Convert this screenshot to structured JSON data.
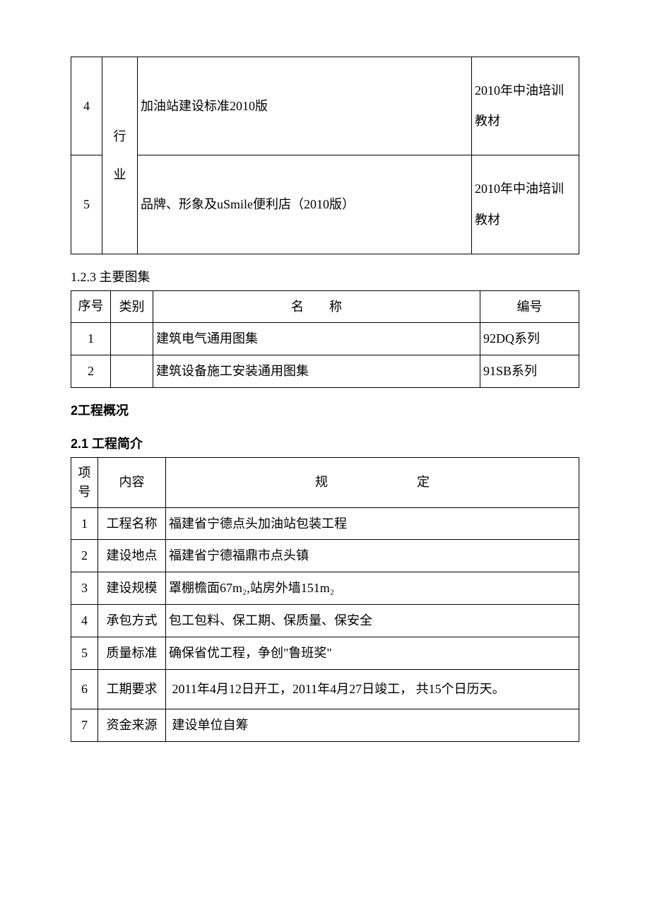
{
  "table1": {
    "rows": [
      {
        "num": "4",
        "cat_top": "行",
        "desc": "加油站建设标准2010版",
        "note": "2010年中油培训教材"
      },
      {
        "num": "5",
        "cat_bottom": "业",
        "desc": "品牌、形象及uSmile便利店（2010版）",
        "note": "2010年中油培训教材"
      }
    ]
  },
  "sec123": "1.2.3 主要图集",
  "table2": {
    "headers": {
      "c1": "序号",
      "c2": "类别",
      "c3": "名　　称",
      "c4": "编号"
    },
    "rows": [
      {
        "num": "1",
        "cat": "",
        "desc": "建筑电气通用图集",
        "code": "92DQ系列"
      },
      {
        "num": "2",
        "cat": "",
        "desc": "建筑设备施工安装通用图集",
        "code": "91SB系列"
      }
    ]
  },
  "sec2": "2工程概况",
  "sec21": "2.1 工程简介",
  "table3": {
    "headers": {
      "c1": "项号",
      "c2": "内容",
      "c3": "规　　　　　　　定"
    },
    "rows": [
      {
        "num": "1",
        "label": "工程名称",
        "val": "福建省宁德点头加油站包装工程"
      },
      {
        "num": "2",
        "label": "建设地点",
        "val": "福建省宁德福鼎市点头镇"
      },
      {
        "num": "3",
        "label": "建设规模",
        "val": "罩棚檐面67m₂,站房外墙151m₂"
      },
      {
        "num": "4",
        "label": "承包方式",
        "val": "包工包料、保工期、保质量、保安全"
      },
      {
        "num": "5",
        "label": "质量标准",
        "val": "确保省优工程，争创\"鲁班奖\""
      },
      {
        "num": "6",
        "label": "工期要求",
        "val": " 2011年4月12日开工，2011年4月27日竣工， 共15个日历天。"
      },
      {
        "num": "7",
        "label": "资金来源",
        "val": " 建设单位自筹"
      }
    ]
  }
}
